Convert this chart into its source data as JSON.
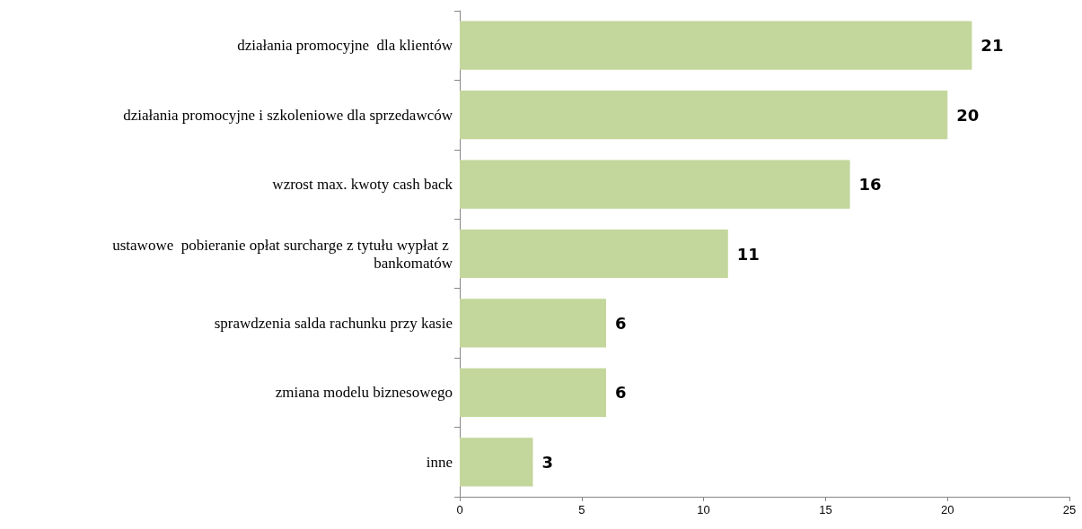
{
  "chart_data": {
    "type": "bar",
    "orientation": "horizontal",
    "categories": [
      "działania promocyjne  dla klientów",
      "działania promocyjne i szkoleniowe dla sprzedawców",
      "wzrost max. kwoty cash back",
      "ustawowe  pobieranie opłat surcharge z tytułu wypłat z bankomatów",
      "sprawdzenia salda rachunku przy kasie",
      "zmiana modelu biznesowego",
      "inne"
    ],
    "values": [
      21,
      20,
      16,
      11,
      6,
      6,
      3
    ],
    "color": "#c3d69b",
    "xlim": [
      0,
      25
    ],
    "xticks": [
      0,
      5,
      10,
      15,
      20,
      25
    ],
    "grid": false,
    "data_labels": true
  }
}
